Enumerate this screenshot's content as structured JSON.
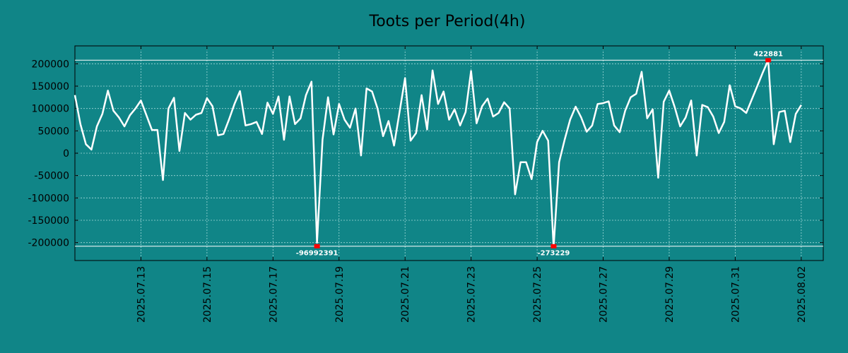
{
  "chart_data": {
    "type": "line",
    "title": "Toots per Period(4h)",
    "xlabel": "",
    "ylabel": "",
    "xlim": [
      "2025-07-11",
      "2025-08-02 16:00"
    ],
    "ylim": [
      -240000,
      240000
    ],
    "y_ticks": [
      200000,
      150000,
      100000,
      50000,
      0,
      -50000,
      -100000,
      -150000,
      -200000
    ],
    "y_tick_labels": [
      "200000",
      "150000",
      "100000",
      "50000",
      "0",
      "-50000",
      "-100000",
      "-150000",
      "-200000"
    ],
    "x_ticks": [
      "2025-07-13",
      "2025-07-15",
      "2025-07-17",
      "2025-07-19",
      "2025-07-21",
      "2025-07-23",
      "2025-07-25",
      "2025-07-27",
      "2025-07-29",
      "2025-07-31",
      "2025-08-02"
    ],
    "x_tick_labels": [
      "2025.07.13",
      "2025.07.15",
      "2025.07.17",
      "2025.07.19",
      "2025.07.21",
      "2025.07.23",
      "2025.07.25",
      "2025.07.27",
      "2025.07.29",
      "2025.07.31",
      "2025.08.02"
    ],
    "grid": true,
    "reference_lines": [
      208000,
      -208000
    ],
    "series": [
      {
        "name": "",
        "color": "#ffffff",
        "points": [
          [
            "2025-07-11 00:00",
            130000
          ],
          [
            "2025-07-11 04:00",
            65000
          ],
          [
            "2025-07-11 08:00",
            20000
          ],
          [
            "2025-07-11 12:00",
            8000
          ],
          [
            "2025-07-11 16:00",
            60000
          ],
          [
            "2025-07-11 20:00",
            88000
          ],
          [
            "2025-07-12 00:00",
            140000
          ],
          [
            "2025-07-12 04:00",
            95000
          ],
          [
            "2025-07-12 08:00",
            80000
          ],
          [
            "2025-07-12 12:00",
            60000
          ],
          [
            "2025-07-12 16:00",
            85000
          ],
          [
            "2025-07-12 20:00",
            100000
          ],
          [
            "2025-07-13 00:00",
            118000
          ],
          [
            "2025-07-13 04:00",
            85000
          ],
          [
            "2025-07-13 08:00",
            52000
          ],
          [
            "2025-07-13 12:00",
            52000
          ],
          [
            "2025-07-13 16:00",
            -60000
          ],
          [
            "2025-07-13 20:00",
            100000
          ],
          [
            "2025-07-14 00:00",
            124000
          ],
          [
            "2025-07-14 04:00",
            5000
          ],
          [
            "2025-07-14 08:00",
            90000
          ],
          [
            "2025-07-14 12:00",
            75000
          ],
          [
            "2025-07-14 16:00",
            86000
          ],
          [
            "2025-07-14 20:00",
            90000
          ],
          [
            "2025-07-15 00:00",
            123000
          ],
          [
            "2025-07-15 04:00",
            105000
          ],
          [
            "2025-07-15 08:00",
            40000
          ],
          [
            "2025-07-15 12:00",
            43000
          ],
          [
            "2025-07-15 16:00",
            75000
          ],
          [
            "2025-07-15 20:00",
            110000
          ],
          [
            "2025-07-16 00:00",
            139000
          ],
          [
            "2025-07-16 04:00",
            62000
          ],
          [
            "2025-07-16 08:00",
            65000
          ],
          [
            "2025-07-16 12:00",
            70000
          ],
          [
            "2025-07-16 16:00",
            43000
          ],
          [
            "2025-07-16 20:00",
            113000
          ],
          [
            "2025-07-17 00:00",
            88000
          ],
          [
            "2025-07-17 04:00",
            127000
          ],
          [
            "2025-07-17 08:00",
            30000
          ],
          [
            "2025-07-17 12:00",
            127000
          ],
          [
            "2025-07-17 16:00",
            65000
          ],
          [
            "2025-07-17 20:00",
            78000
          ],
          [
            "2025-07-18 00:00",
            130000
          ],
          [
            "2025-07-18 04:00",
            160000
          ],
          [
            "2025-07-18 08:00",
            -200000
          ],
          [
            "2025-07-18 12:00",
            30000
          ],
          [
            "2025-07-18 16:00",
            125000
          ],
          [
            "2025-07-18 20:00",
            42000
          ],
          [
            "2025-07-19 00:00",
            110000
          ],
          [
            "2025-07-19 04:00",
            75000
          ],
          [
            "2025-07-19 08:00",
            57000
          ],
          [
            "2025-07-19 12:00",
            100000
          ],
          [
            "2025-07-19 16:00",
            -5000
          ],
          [
            "2025-07-19 20:00",
            145000
          ],
          [
            "2025-07-20 00:00",
            138000
          ],
          [
            "2025-07-20 04:00",
            100000
          ],
          [
            "2025-07-20 08:00",
            38000
          ],
          [
            "2025-07-20 12:00",
            72000
          ],
          [
            "2025-07-20 16:00",
            17000
          ],
          [
            "2025-07-20 20:00",
            92000
          ],
          [
            "2025-07-21 00:00",
            168000
          ],
          [
            "2025-07-21 04:00",
            28000
          ],
          [
            "2025-07-21 08:00",
            45000
          ],
          [
            "2025-07-21 12:00",
            130000
          ],
          [
            "2025-07-21 16:00",
            53000
          ],
          [
            "2025-07-21 20:00",
            185000
          ],
          [
            "2025-07-22 00:00",
            110000
          ],
          [
            "2025-07-22 04:00",
            138000
          ],
          [
            "2025-07-22 08:00",
            75000
          ],
          [
            "2025-07-22 12:00",
            98000
          ],
          [
            "2025-07-22 16:00",
            62000
          ],
          [
            "2025-07-22 20:00",
            92000
          ],
          [
            "2025-07-23 00:00",
            184000
          ],
          [
            "2025-07-23 04:00",
            67000
          ],
          [
            "2025-07-23 08:00",
            105000
          ],
          [
            "2025-07-23 12:00",
            122000
          ],
          [
            "2025-07-23 16:00",
            82000
          ],
          [
            "2025-07-23 20:00",
            90000
          ],
          [
            "2025-07-24 00:00",
            114000
          ],
          [
            "2025-07-24 04:00",
            100000
          ],
          [
            "2025-07-24 08:00",
            -92000
          ],
          [
            "2025-07-24 12:00",
            -20000
          ],
          [
            "2025-07-24 16:00",
            -20000
          ],
          [
            "2025-07-24 20:00",
            -58000
          ],
          [
            "2025-07-25 00:00",
            25000
          ],
          [
            "2025-07-25 04:00",
            50000
          ],
          [
            "2025-07-25 08:00",
            28000
          ],
          [
            "2025-07-25 12:00",
            -210000
          ],
          [
            "2025-07-25 16:00",
            -20000
          ],
          [
            "2025-07-25 20:00",
            30000
          ],
          [
            "2025-07-26 00:00",
            75000
          ],
          [
            "2025-07-26 04:00",
            104000
          ],
          [
            "2025-07-26 08:00",
            80000
          ],
          [
            "2025-07-26 12:00",
            48000
          ],
          [
            "2025-07-26 16:00",
            62000
          ],
          [
            "2025-07-26 20:00",
            110000
          ],
          [
            "2025-07-27 00:00",
            112000
          ],
          [
            "2025-07-27 04:00",
            116000
          ],
          [
            "2025-07-27 08:00",
            62000
          ],
          [
            "2025-07-27 12:00",
            47000
          ],
          [
            "2025-07-27 16:00",
            95000
          ],
          [
            "2025-07-27 20:00",
            125000
          ],
          [
            "2025-07-28 00:00",
            133000
          ],
          [
            "2025-07-28 04:00",
            182000
          ],
          [
            "2025-07-28 08:00",
            78000
          ],
          [
            "2025-07-28 12:00",
            98000
          ],
          [
            "2025-07-28 16:00",
            -55000
          ],
          [
            "2025-07-28 20:00",
            115000
          ],
          [
            "2025-07-29 00:00",
            140000
          ],
          [
            "2025-07-29 04:00",
            103000
          ],
          [
            "2025-07-29 08:00",
            60000
          ],
          [
            "2025-07-29 12:00",
            80000
          ],
          [
            "2025-07-29 16:00",
            118000
          ],
          [
            "2025-07-29 20:00",
            -5000
          ],
          [
            "2025-07-30 00:00",
            108000
          ],
          [
            "2025-07-30 04:00",
            103000
          ],
          [
            "2025-07-30 08:00",
            82000
          ],
          [
            "2025-07-30 12:00",
            45000
          ],
          [
            "2025-07-30 16:00",
            70000
          ],
          [
            "2025-07-30 20:00",
            152000
          ],
          [
            "2025-07-31 00:00",
            105000
          ],
          [
            "2025-07-31 04:00",
            100000
          ],
          [
            "2025-07-31 08:00",
            90000
          ],
          [
            "2025-07-31 12:00",
            120000
          ],
          [
            "2025-07-31 16:00",
            150000
          ],
          [
            "2025-07-31 20:00",
            180000
          ],
          [
            "2025-08-01 00:00",
            208000
          ],
          [
            "2025-08-01 04:00",
            20000
          ],
          [
            "2025-08-01 08:00",
            92000
          ],
          [
            "2025-08-01 12:00",
            95000
          ],
          [
            "2025-08-01 16:00",
            25000
          ],
          [
            "2025-08-01 20:00",
            88000
          ],
          [
            "2025-08-02 00:00",
            108000
          ]
        ]
      }
    ],
    "annotations": [
      {
        "label": "422881",
        "x": "2025-08-01 00:00",
        "y": 208000,
        "position": "above",
        "marker_color": "#ff0000"
      },
      {
        "label": "-96992391",
        "x": "2025-07-18 08:00",
        "y": -208000,
        "position": "below",
        "marker_color": "#ff0000"
      },
      {
        "label": "-273229",
        "x": "2025-07-25 12:00",
        "y": -208000,
        "position": "below",
        "marker_color": "#ff0000"
      }
    ]
  }
}
